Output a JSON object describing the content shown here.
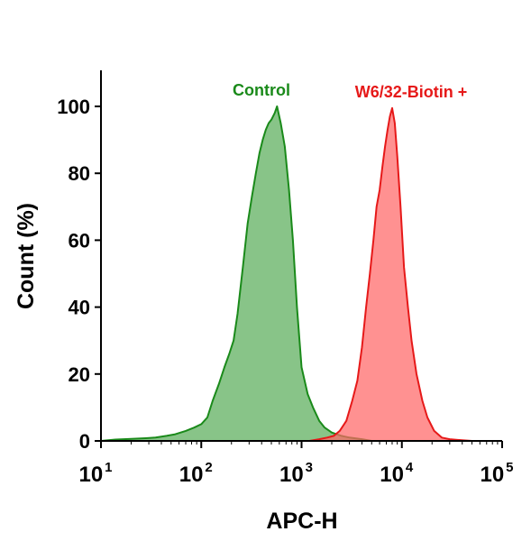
{
  "chart_data": {
    "type": "area",
    "xlabel": "APC-H",
    "ylabel": "Count  (%)",
    "x_scale": "log",
    "xlim": [
      10,
      100000
    ],
    "ylim": [
      0,
      100
    ],
    "x_ticks": [
      {
        "base": "10",
        "exp": "1",
        "value": 10
      },
      {
        "base": "10",
        "exp": "2",
        "value": 100
      },
      {
        "base": "10",
        "exp": "3",
        "value": 1000
      },
      {
        "base": "10",
        "exp": "4",
        "value": 10000
      },
      {
        "base": "10",
        "exp": "5",
        "value": 100000
      }
    ],
    "y_ticks": [
      "0",
      "20",
      "40",
      "60",
      "80",
      "100"
    ],
    "grid": false,
    "legend": "none",
    "series": [
      {
        "name": "Control",
        "stroke": "#1a8a1a",
        "fill": "#5aad5a",
        "x": [
          10,
          14,
          20,
          28,
          35,
          45,
          55,
          70,
          85,
          100,
          115,
          130,
          150,
          170,
          190,
          210,
          230,
          260,
          290,
          320,
          350,
          380,
          410,
          440,
          470,
          500,
          540,
          570,
          620,
          680,
          750,
          820,
          900,
          1000,
          1150,
          1300,
          1500,
          1700,
          2000,
          2500,
          3000,
          4000,
          5000
        ],
        "y": [
          0,
          0.4,
          0.6,
          0.8,
          1,
          1.5,
          2,
          3,
          4,
          5,
          7,
          12,
          17,
          22,
          26,
          30,
          38,
          52,
          65,
          73,
          80,
          86,
          90,
          93,
          95,
          96,
          98,
          100,
          95,
          88,
          75,
          60,
          40,
          22,
          14,
          10,
          6,
          4,
          2.5,
          1.5,
          1,
          0.5,
          0
        ]
      },
      {
        "name": "W6/32-Biotin  +",
        "stroke": "#e61919",
        "fill": "#ff6666",
        "x": [
          1200,
          1500,
          1800,
          2100,
          2400,
          2800,
          3200,
          3600,
          4000,
          4400,
          4800,
          5200,
          5600,
          6000,
          6400,
          6800,
          7200,
          7600,
          8000,
          8500,
          9000,
          9700,
          10500,
          11500,
          12500,
          14000,
          16000,
          18000,
          21000,
          25000,
          30000,
          40000,
          50000
        ],
        "y": [
          0,
          0.5,
          1,
          1.5,
          3,
          6,
          12,
          18,
          28,
          40,
          50,
          60,
          70,
          75,
          82,
          88,
          93,
          97,
          99.5,
          95,
          85,
          70,
          52,
          40,
          30,
          20,
          12,
          7,
          3,
          1,
          0.5,
          0.2,
          0
        ]
      }
    ]
  }
}
